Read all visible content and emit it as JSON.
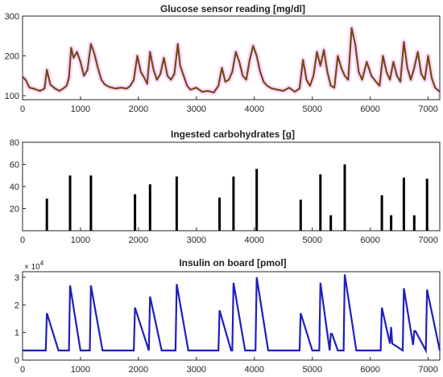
{
  "chart_data": [
    {
      "type": "line",
      "title": "Glucose sensor reading [mg/dl]",
      "xlabel": "",
      "ylabel": "",
      "xlim": [
        0,
        7200
      ],
      "ylim": [
        90,
        300
      ],
      "xticks": [
        "0",
        "1000",
        "2000",
        "3000",
        "4000",
        "5000",
        "6000",
        "7000"
      ],
      "yticks": [
        "100",
        "200",
        "300"
      ],
      "grid": false,
      "colors": {
        "trace": "#8b3a0e",
        "baseline": "#2e7d32",
        "noise": "#ff66ff"
      },
      "series": [
        {
          "x": [
            0,
            60,
            120,
            180,
            240,
            300,
            380,
            420,
            480,
            560,
            640,
            700,
            760,
            800,
            840,
            880,
            940,
            1000,
            1060,
            1120,
            1180,
            1240,
            1300,
            1360,
            1420,
            1500,
            1600,
            1700,
            1800,
            1860,
            1920,
            1980,
            2040,
            2100,
            2150,
            2200,
            2260,
            2320,
            2380,
            2440,
            2500,
            2560,
            2620,
            2680,
            2720,
            2780,
            2840,
            2900,
            3000,
            3100,
            3200,
            3300,
            3380,
            3440,
            3500,
            3560,
            3620,
            3680,
            3740,
            3800,
            3860,
            3920,
            3980,
            4040,
            4100,
            4160,
            4220,
            4300,
            4400,
            4500,
            4600,
            4700,
            4780,
            4840,
            4900,
            4960,
            5020,
            5080,
            5140,
            5200,
            5260,
            5320,
            5380,
            5440,
            5500,
            5560,
            5620,
            5680,
            5740,
            5800,
            5860,
            5940,
            6020,
            6100,
            6160,
            6220,
            6280,
            6340,
            6400,
            6460,
            6520,
            6580,
            6640,
            6700,
            6760,
            6820,
            6880,
            6940,
            7000,
            7060,
            7120,
            7200
          ],
          "values": [
            148,
            138,
            120,
            118,
            115,
            112,
            118,
            165,
            128,
            118,
            112,
            118,
            125,
            145,
            220,
            195,
            210,
            185,
            150,
            165,
            230,
            205,
            170,
            140,
            128,
            122,
            118,
            120,
            118,
            125,
            140,
            200,
            160,
            145,
            130,
            210,
            165,
            140,
            155,
            195,
            150,
            140,
            155,
            230,
            175,
            150,
            125,
            115,
            120,
            110,
            112,
            108,
            125,
            170,
            135,
            140,
            160,
            210,
            185,
            150,
            140,
            190,
            225,
            200,
            160,
            135,
            125,
            118,
            115,
            112,
            120,
            110,
            118,
            190,
            140,
            125,
            150,
            210,
            175,
            215,
            160,
            125,
            120,
            200,
            170,
            150,
            140,
            270,
            230,
            160,
            140,
            185,
            150,
            135,
            125,
            200,
            160,
            140,
            185,
            150,
            135,
            235,
            170,
            140,
            170,
            210,
            155,
            140,
            200,
            145,
            120,
            110
          ]
        }
      ]
    },
    {
      "type": "bar",
      "title": "Ingested carbohydrates [g]",
      "xlabel": "",
      "ylabel": "",
      "xlim": [
        0,
        7200
      ],
      "ylim": [
        0,
        80
      ],
      "xticks": [
        "0",
        "1000",
        "2000",
        "3000",
        "4000",
        "5000",
        "6000",
        "7000"
      ],
      "yticks": [
        "20",
        "40",
        "60",
        "80"
      ],
      "grid": false,
      "colors": {
        "bar": "#000000"
      },
      "x": [
        420,
        820,
        1180,
        1940,
        2200,
        2660,
        3400,
        3640,
        4040,
        4800,
        5140,
        5320,
        5560,
        6200,
        6360,
        6580,
        6760,
        6980
      ],
      "values": [
        29,
        50,
        50,
        33,
        42,
        49,
        30,
        49,
        56,
        28,
        51,
        14,
        60,
        32,
        14,
        48,
        14,
        47
      ]
    },
    {
      "type": "line",
      "title": "Insulin on board [pmol]",
      "xlabel": "",
      "ylabel": "",
      "xlim": [
        0,
        7200
      ],
      "ylim": [
        0,
        32000
      ],
      "xticks": [
        "0",
        "1000",
        "2000",
        "3000",
        "4000",
        "5000",
        "6000",
        "7000"
      ],
      "yticks": [
        "0",
        "1",
        "2",
        "3"
      ],
      "y_exponent_label": "× 10",
      "y_exponent_power": "4",
      "grid": false,
      "colors": {
        "trace": "#1f1fbf"
      },
      "series": [
        {
          "x": [
            0,
            400,
            420,
            620,
            800,
            820,
            1000,
            1160,
            1180,
            1380,
            1920,
            1940,
            2180,
            2200,
            2400,
            2640,
            2660,
            2860,
            3380,
            3400,
            3600,
            3620,
            3640,
            3840,
            4020,
            4040,
            4240,
            4780,
            4800,
            5000,
            5120,
            5140,
            5300,
            5320,
            5340,
            5440,
            5540,
            5560,
            5760,
            6180,
            6200,
            6340,
            6360,
            6380,
            6560,
            6580,
            6740,
            6760,
            6780,
            6960,
            6980,
            7200
          ],
          "values": [
            3500,
            3500,
            17000,
            3500,
            3500,
            27000,
            3500,
            3500,
            27000,
            3500,
            3500,
            19000,
            3500,
            23000,
            3500,
            3500,
            27500,
            3500,
            3500,
            18000,
            3500,
            3500,
            28000,
            3500,
            3500,
            30000,
            3500,
            3500,
            17000,
            3500,
            3500,
            28000,
            3500,
            9500,
            9500,
            3500,
            3500,
            31000,
            3500,
            3500,
            19000,
            6000,
            12000,
            6000,
            3500,
            26000,
            5500,
            10500,
            10500,
            3500,
            25500,
            3500
          ]
        }
      ]
    }
  ]
}
